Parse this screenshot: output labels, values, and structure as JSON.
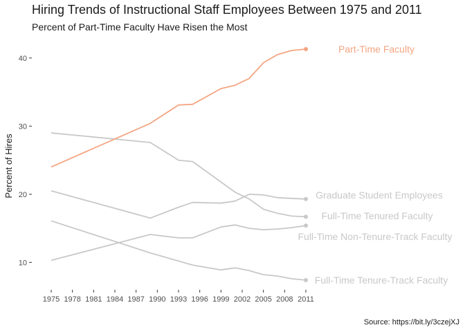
{
  "chart_data": {
    "type": "line",
    "title": "Hiring Trends of Instructional Staff Employees Between 1975 and 2011",
    "subtitle": "Percent of Part-Time Faculty Have Risen the Most",
    "caption": "Source: https://bit.ly/3czejXJ",
    "xlabel": "",
    "ylabel": "Percent of Hires",
    "x": [
      1975,
      1989,
      1993,
      1995,
      1999,
      2001,
      2003,
      2005,
      2007,
      2009,
      2011
    ],
    "x_ticks": [
      1975,
      1978,
      1981,
      1984,
      1987,
      1990,
      1993,
      1996,
      1999,
      2002,
      2005,
      2008,
      2011
    ],
    "y_ticks": [
      10,
      20,
      30,
      40
    ],
    "xlim": [
      1975,
      2011
    ],
    "ylim": [
      7.4,
      41.3
    ],
    "grid": false,
    "legend": "direct labels at line ends",
    "highlight_color": "#F4A582",
    "muted_color": "#C8C8C8",
    "series": [
      {
        "name": "Full-Time Tenured Faculty",
        "highlight": false,
        "values": [
          29.0,
          27.6,
          25.0,
          24.8,
          21.8,
          20.3,
          19.3,
          17.8,
          17.2,
          16.8,
          16.7
        ]
      },
      {
        "name": "Full-Time Tenure-Track Faculty",
        "highlight": false,
        "values": [
          16.1,
          11.4,
          10.2,
          9.6,
          8.9,
          9.2,
          8.8,
          8.2,
          8.0,
          7.6,
          7.4
        ]
      },
      {
        "name": "Full-Time Non-Tenure-Track Faculty",
        "highlight": false,
        "values": [
          10.3,
          14.1,
          13.6,
          13.6,
          15.2,
          15.5,
          15.0,
          14.8,
          14.9,
          15.1,
          15.4
        ]
      },
      {
        "name": "Part-Time Faculty",
        "highlight": true,
        "values": [
          24.0,
          30.4,
          33.1,
          33.2,
          35.5,
          36.0,
          37.0,
          39.3,
          40.5,
          41.1,
          41.3
        ]
      },
      {
        "name": "Graduate Student Employees",
        "highlight": false,
        "values": [
          20.5,
          16.5,
          18.1,
          18.8,
          18.7,
          19.0,
          20.0,
          19.9,
          19.5,
          19.4,
          19.3
        ]
      }
    ]
  }
}
